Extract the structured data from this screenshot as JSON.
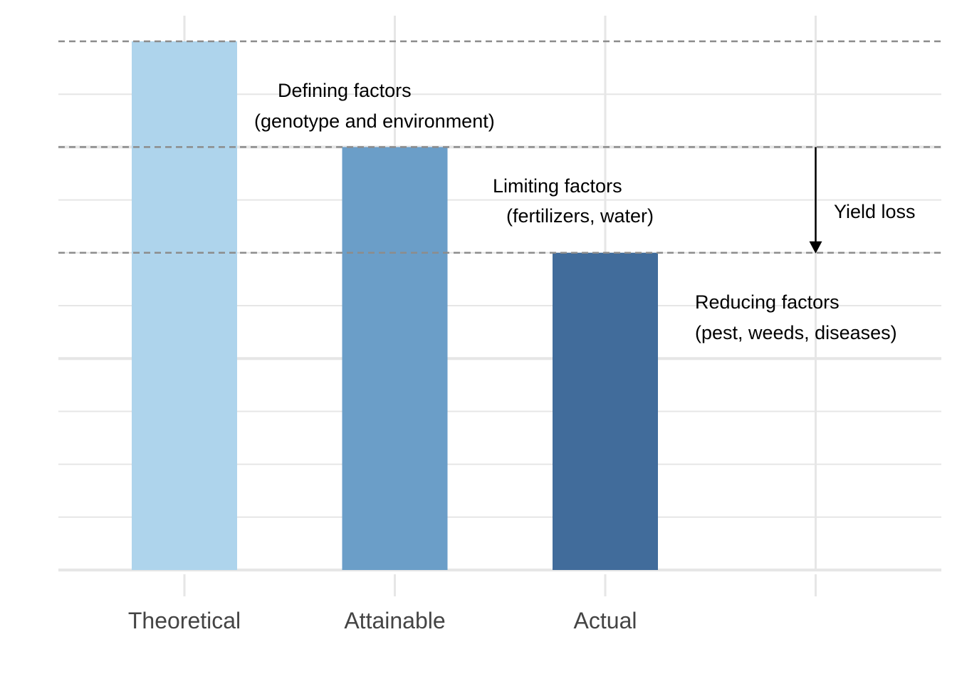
{
  "chart_data": {
    "type": "bar",
    "categories": [
      "Theoretical",
      "Attainable",
      "Actual"
    ],
    "values": [
      10,
      8,
      6
    ],
    "colors": [
      "#aed4ec",
      "#6b9ec8",
      "#416c9b"
    ],
    "xlim_extra_category": "",
    "ylim": [
      0,
      10
    ],
    "major_gridlines_y": [
      0,
      4,
      8
    ],
    "minor_gridlines_y": [
      1,
      2,
      3,
      5,
      6,
      7,
      9
    ],
    "reference_lines_y": [
      10,
      8,
      6
    ],
    "reference_line_color": "#8c8c8c",
    "gridline_color": "#e6e6e6",
    "annotations": [
      {
        "line1": "Defining factors",
        "line2": "(genotype and environment)"
      },
      {
        "line1": "Limiting factors",
        "line2": "(fertilizers, water)"
      },
      {
        "line1": "Reducing factors",
        "line2": "(pest, weeds, diseases)"
      }
    ],
    "arrow": {
      "from_y": 8,
      "to_y": 6,
      "label": "Yield loss"
    },
    "title": "",
    "xlabel": "",
    "ylabel": "",
    "grid": true,
    "legend": "none"
  }
}
